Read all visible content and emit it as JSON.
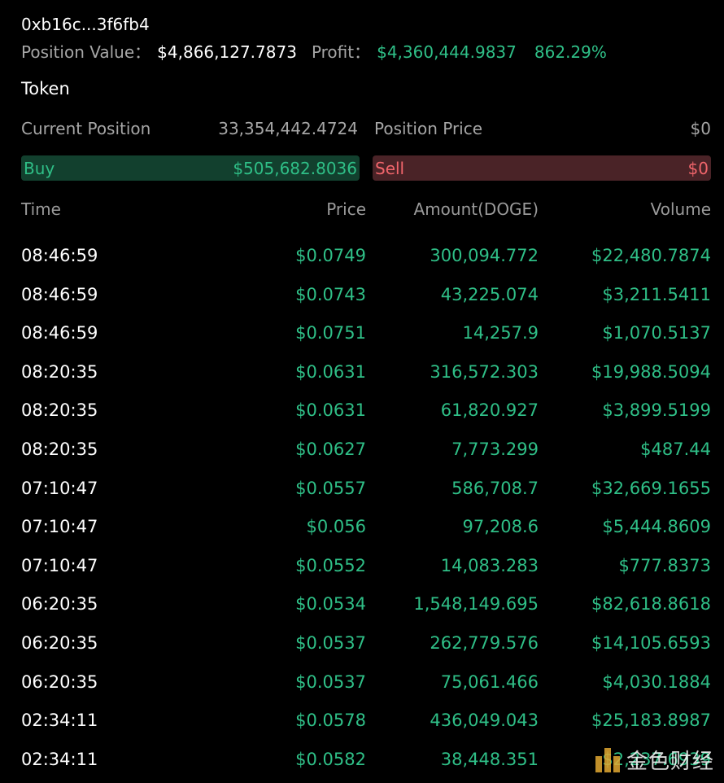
{
  "header": {
    "wallet": "0xb16c...3f6fb4",
    "position_value_label": "Position Value：",
    "position_value": "$4,866,127.7873",
    "profit_label": "Profit：",
    "profit_value": "$4,360,444.9837",
    "profit_percent": "862.29%"
  },
  "token": {
    "label": "Token",
    "current_position_label": "Current Position",
    "current_position_value": "33,354,442.4724",
    "position_price_label": "Position Price",
    "position_price_value": "$0"
  },
  "buy": {
    "label": "Buy",
    "value": "$505,682.8036"
  },
  "sell": {
    "label": "Sell",
    "value": "$0"
  },
  "table": {
    "headers": {
      "time": "Time",
      "price": "Price",
      "amount": "Amount(DOGE)",
      "volume": "Volume"
    },
    "rows": [
      {
        "time": "08:46:59",
        "price": "$0.0749",
        "amount": "300,094.772",
        "volume": "$22,480.7874"
      },
      {
        "time": "08:46:59",
        "price": "$0.0743",
        "amount": "43,225.074",
        "volume": "$3,211.5411"
      },
      {
        "time": "08:46:59",
        "price": "$0.0751",
        "amount": "14,257.9",
        "volume": "$1,070.5137"
      },
      {
        "time": "08:20:35",
        "price": "$0.0631",
        "amount": "316,572.303",
        "volume": "$19,988.5094"
      },
      {
        "time": "08:20:35",
        "price": "$0.0631",
        "amount": "61,820.927",
        "volume": "$3,899.5199"
      },
      {
        "time": "08:20:35",
        "price": "$0.0627",
        "amount": "7,773.299",
        "volume": "$487.44"
      },
      {
        "time": "07:10:47",
        "price": "$0.0557",
        "amount": "586,708.7",
        "volume": "$32,669.1655"
      },
      {
        "time": "07:10:47",
        "price": "$0.056",
        "amount": "97,208.6",
        "volume": "$5,444.8609"
      },
      {
        "time": "07:10:47",
        "price": "$0.0552",
        "amount": "14,083.283",
        "volume": "$777.8373"
      },
      {
        "time": "06:20:35",
        "price": "$0.0534",
        "amount": "1,548,149.695",
        "volume": "$82,618.8618"
      },
      {
        "time": "06:20:35",
        "price": "$0.0537",
        "amount": "262,779.576",
        "volume": "$14,105.6593"
      },
      {
        "time": "06:20:35",
        "price": "$0.0537",
        "amount": "75,061.466",
        "volume": "$4,030.1884"
      },
      {
        "time": "02:34:11",
        "price": "$0.0578",
        "amount": "436,049.043",
        "volume": "$25,183.8987"
      },
      {
        "time": "02:34:11",
        "price": "$0.0582",
        "amount": "38,448.351",
        "volume": "$2,237.6939"
      }
    ]
  },
  "watermark": {
    "text": "金色财经",
    "icon": "jinse-logo-icon"
  }
}
